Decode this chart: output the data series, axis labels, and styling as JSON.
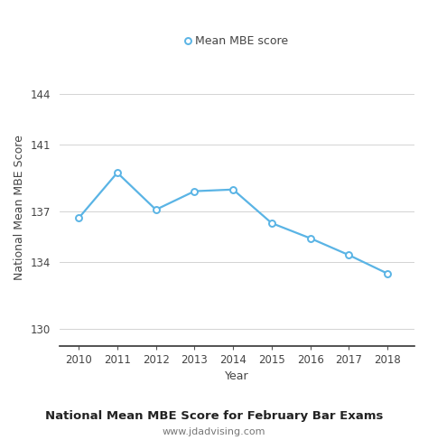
{
  "years": [
    2010,
    2011,
    2012,
    2013,
    2014,
    2015,
    2016,
    2017,
    2018
  ],
  "scores": [
    136.6,
    139.3,
    137.1,
    138.2,
    138.3,
    136.3,
    135.4,
    134.4,
    133.3
  ],
  "line_color": "#5ab4e5",
  "marker_style": "o",
  "marker_face": "white",
  "marker_edge": "#5ab4e5",
  "marker_size": 5,
  "legend_label": "Mean MBE score",
  "xlabel": "Year",
  "ylabel": "National Mean MBE Score",
  "title": "National Mean MBE Score for February Bar Exams",
  "subtitle": "www.jdadvising.com",
  "yticks": [
    130,
    134,
    137,
    141,
    144
  ],
  "ylim": [
    129.0,
    145.5
  ],
  "xlim": [
    2009.5,
    2018.7
  ],
  "background_color": "#ffffff",
  "grid_color": "#cccccc",
  "tick_color": "#444444",
  "title_fontsize": 9.5,
  "subtitle_fontsize": 8,
  "label_fontsize": 9,
  "tick_fontsize": 8.5
}
